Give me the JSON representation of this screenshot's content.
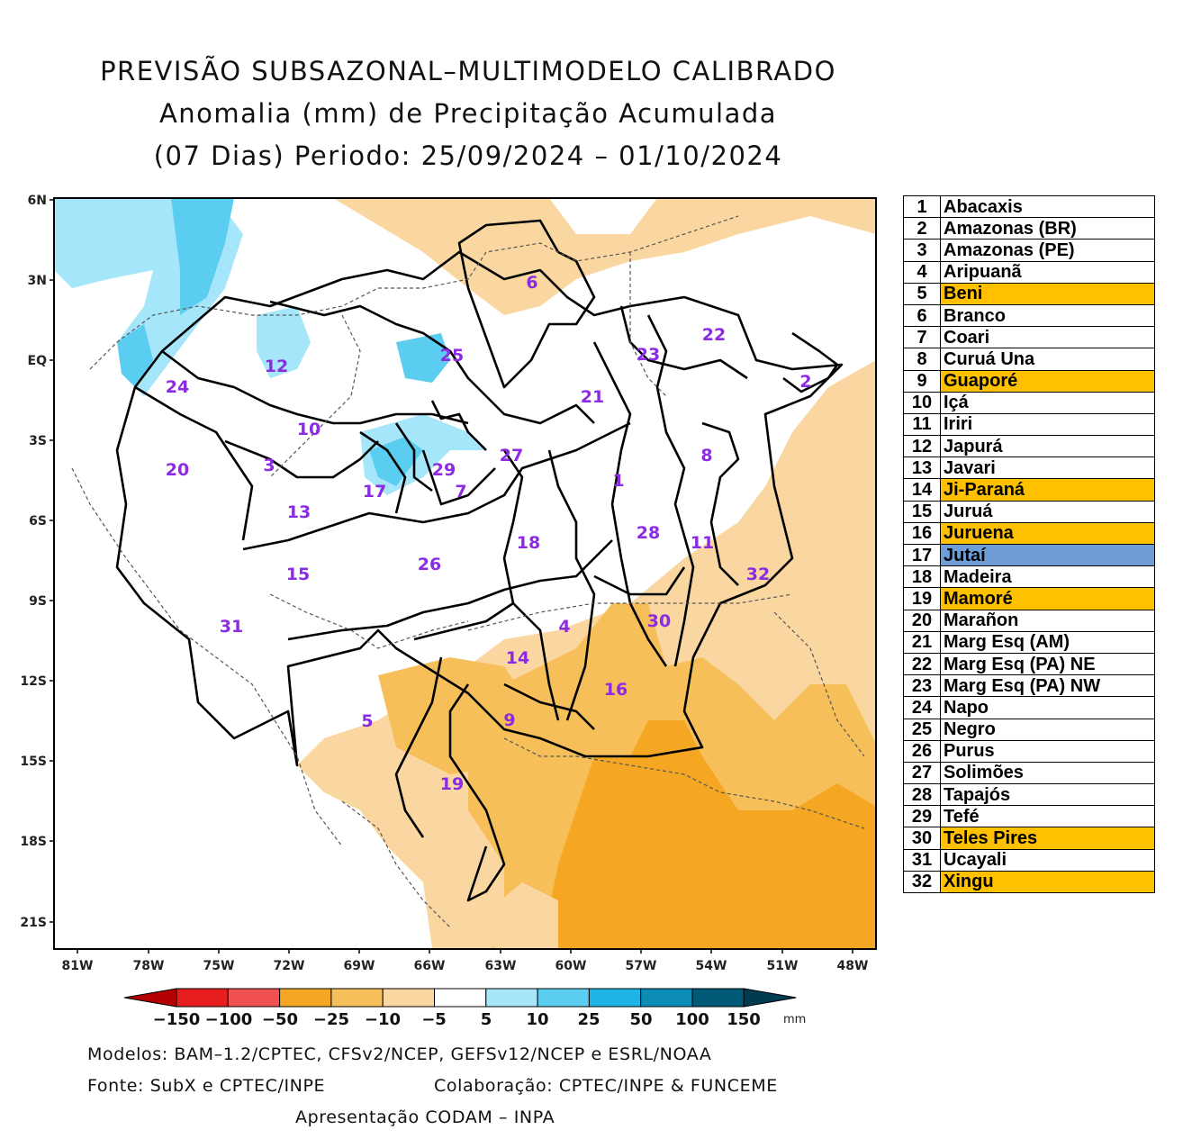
{
  "header": {
    "title_line1": "PREVISÃO SUBSAZONAL–MULTIMODELO CALIBRADO",
    "title_line2": "Anomalia (mm) de Precipitação Acumulada",
    "title_line3": "(07 Dias) Periodo: 25/09/2024 – 01/10/2024"
  },
  "axes": {
    "lat_labels": [
      "6N",
      "3N",
      "EQ",
      "3S",
      "6S",
      "9S",
      "12S",
      "15S",
      "18S",
      "21S"
    ],
    "lon_labels": [
      "81W",
      "78W",
      "75W",
      "72W",
      "69W",
      "66W",
      "63W",
      "60W",
      "57W",
      "54W",
      "51W",
      "48W"
    ]
  },
  "colorbar": {
    "colors": [
      "#b40000",
      "#e61e1e",
      "#f05050",
      "#f5a623",
      "#f7bf5a",
      "#fad7a0",
      "#ffffff",
      "#a6e6fa",
      "#5acdf0",
      "#1eb4e6",
      "#0a8cb4",
      "#005a78",
      "#003c50"
    ],
    "labels": [
      "−150",
      "−100",
      "−50",
      "−25",
      "−10",
      "−5",
      "5",
      "10",
      "25",
      "50",
      "100",
      "150"
    ],
    "unit": "mm"
  },
  "basin_labels": [
    "1",
    "2",
    "3",
    "4",
    "5",
    "6",
    "7",
    "8",
    "9",
    "10",
    "11",
    "12",
    "13",
    "14",
    "15",
    "16",
    "17",
    "18",
    "19",
    "20",
    "21",
    "22",
    "23",
    "24",
    "25",
    "26",
    "27",
    "28",
    "29",
    "30",
    "31",
    "32"
  ],
  "legend": {
    "rows": [
      {
        "num": "1",
        "name": "Abacaxis",
        "highlight": "none"
      },
      {
        "num": "2",
        "name": "Amazonas (BR)",
        "highlight": "none"
      },
      {
        "num": "3",
        "name": "Amazonas (PE)",
        "highlight": "none"
      },
      {
        "num": "4",
        "name": "Aripuanã",
        "highlight": "none"
      },
      {
        "num": "5",
        "name": "Beni",
        "highlight": "dry"
      },
      {
        "num": "6",
        "name": "Branco",
        "highlight": "none"
      },
      {
        "num": "7",
        "name": "Coari",
        "highlight": "none"
      },
      {
        "num": "8",
        "name": "Curuá Una",
        "highlight": "none"
      },
      {
        "num": "9",
        "name": "Guaporé",
        "highlight": "dry"
      },
      {
        "num": "10",
        "name": "Içá",
        "highlight": "none"
      },
      {
        "num": "11",
        "name": "Iriri",
        "highlight": "none"
      },
      {
        "num": "12",
        "name": "Japurá",
        "highlight": "none"
      },
      {
        "num": "13",
        "name": "Javari",
        "highlight": "none"
      },
      {
        "num": "14",
        "name": "Ji-Paraná",
        "highlight": "dry"
      },
      {
        "num": "15",
        "name": "Juruá",
        "highlight": "none"
      },
      {
        "num": "16",
        "name": "Juruena",
        "highlight": "dry"
      },
      {
        "num": "17",
        "name": "Jutaí",
        "highlight": "wet"
      },
      {
        "num": "18",
        "name": "Madeira",
        "highlight": "none"
      },
      {
        "num": "19",
        "name": "Mamoré",
        "highlight": "dry"
      },
      {
        "num": "20",
        "name": "Marañon",
        "highlight": "none"
      },
      {
        "num": "21",
        "name": "Marg Esq (AM)",
        "highlight": "none"
      },
      {
        "num": "22",
        "name": "Marg Esq (PA) NE",
        "highlight": "none"
      },
      {
        "num": "23",
        "name": "Marg Esq (PA) NW",
        "highlight": "none"
      },
      {
        "num": "24",
        "name": "Napo",
        "highlight": "none"
      },
      {
        "num": "25",
        "name": "Negro",
        "highlight": "none"
      },
      {
        "num": "26",
        "name": "Purus",
        "highlight": "none"
      },
      {
        "num": "27",
        "name": "Solimões",
        "highlight": "none"
      },
      {
        "num": "28",
        "name": "Tapajós",
        "highlight": "none"
      },
      {
        "num": "29",
        "name": "Tefé",
        "highlight": "none"
      },
      {
        "num": "30",
        "name": "Teles Pires",
        "highlight": "dry"
      },
      {
        "num": "31",
        "name": "Ucayali",
        "highlight": "none"
      },
      {
        "num": "32",
        "name": "Xingu",
        "highlight": "dry"
      }
    ],
    "highlight_colors": {
      "dry": "#ffc000",
      "wet": "#6f9dd6",
      "none": "#ffffff"
    }
  },
  "footer": {
    "models": "Modelos: BAM–1.2/CPTEC, CFSv2/NCEP, GEFSv12/NCEP e ESRL/NOAA",
    "source": "Fonte: SubX e CPTEC/INPE",
    "collab": "Colaboração: CPTEC/INPE & FUNCEME",
    "presentation": "Apresentação CODAM – INPA"
  }
}
